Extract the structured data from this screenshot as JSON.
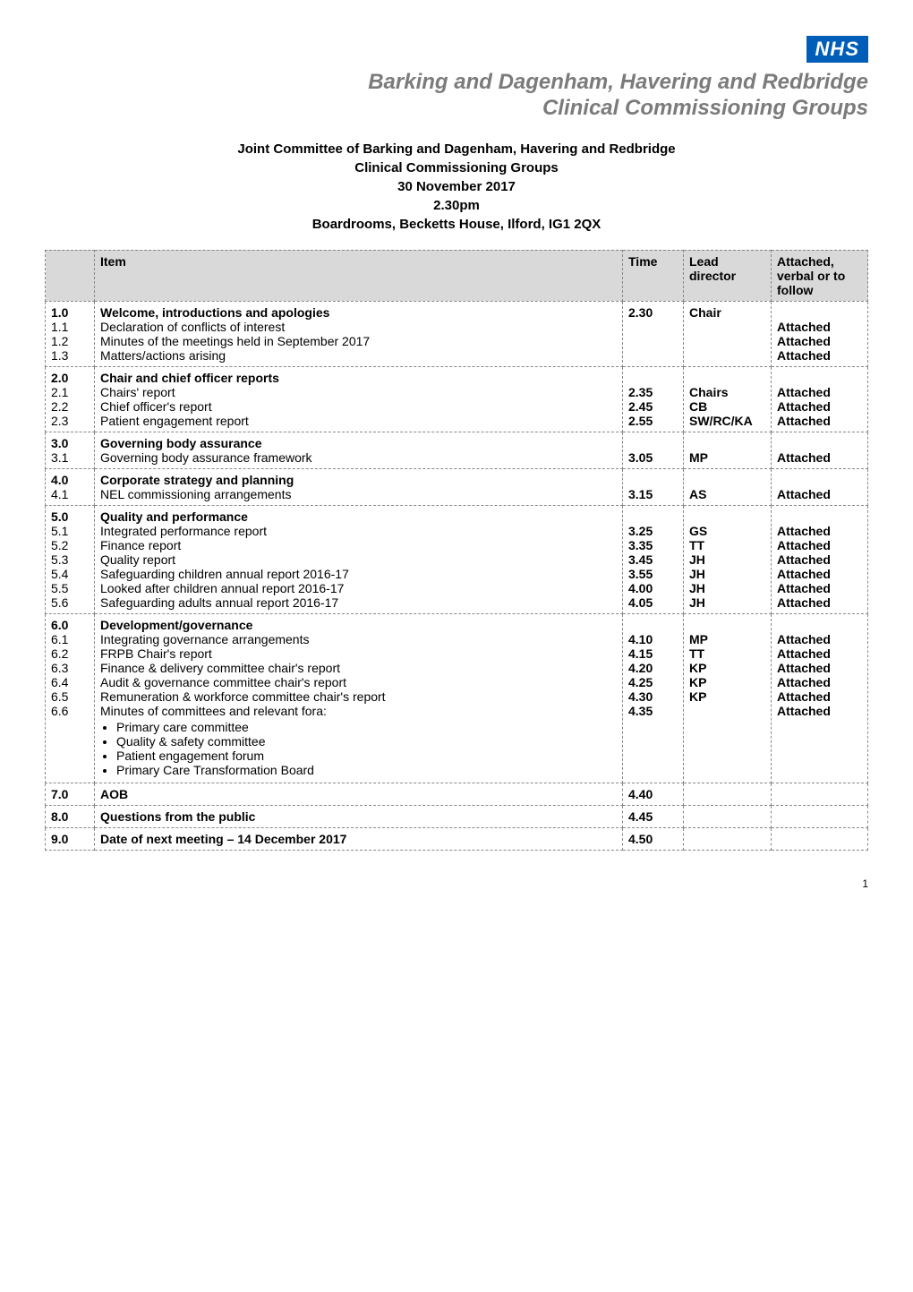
{
  "logo": {
    "text": "NHS",
    "bg_color": "#005eb8",
    "text_color": "#ffffff"
  },
  "org_name_line1": "Barking and Dagenham, Havering and Redbridge",
  "org_name_line2": "Clinical Commissioning Groups",
  "org_name_color": "#7b7b7b",
  "title_lines": [
    "Joint Committee of Barking and Dagenham, Havering and Redbridge",
    "Clinical Commissioning Groups",
    "30 November 2017",
    "2.30pm",
    "Boardrooms, Becketts House, Ilford, IG1 2QX"
  ],
  "headers": {
    "item": "Item",
    "time": "Time",
    "lead": "Lead director",
    "attached": "Attached, verbal or to follow"
  },
  "header_bg": "#d9d9d9",
  "border_color": "#888888",
  "sections": [
    {
      "num": "1.0",
      "title": "Welcome, introductions and apologies",
      "time": "2.30",
      "lead": "Chair",
      "attached": "",
      "rows": [
        {
          "num": "1.1",
          "item": "Declaration of conflicts of interest",
          "time": "",
          "lead": "",
          "attached": "Attached"
        },
        {
          "num": "1.2",
          "item": "Minutes of the meetings held in September 2017",
          "time": "",
          "lead": "",
          "attached": "Attached"
        },
        {
          "num": "1.3",
          "item": "Matters/actions arising",
          "time": "",
          "lead": "",
          "attached": "Attached"
        }
      ]
    },
    {
      "num": "2.0",
      "title": "Chair and chief officer reports",
      "time": "",
      "lead": "",
      "attached": "",
      "rows": [
        {
          "num": "2.1",
          "item": "Chairs' report",
          "time": "2.35",
          "lead": "Chairs",
          "attached": "Attached"
        },
        {
          "num": "2.2",
          "item": "Chief officer's report",
          "time": "2.45",
          "lead": "CB",
          "attached": "Attached"
        },
        {
          "num": "2.3",
          "item": "Patient engagement report",
          "time": "2.55",
          "lead": "SW/RC/KA",
          "attached": "Attached"
        }
      ]
    },
    {
      "num": "3.0",
      "title": "Governing body assurance",
      "time": "",
      "lead": "",
      "attached": "",
      "rows": [
        {
          "num": "3.1",
          "item": "Governing body assurance framework",
          "time": "3.05",
          "lead": "MP",
          "attached": "Attached"
        }
      ]
    },
    {
      "num": "4.0",
      "title": "Corporate strategy and planning",
      "time": "",
      "lead": "",
      "attached": "",
      "rows": [
        {
          "num": "4.1",
          "item": "NEL commissioning arrangements",
          "time": "3.15",
          "lead": "AS",
          "attached": "Attached"
        }
      ]
    },
    {
      "num": "5.0",
      "title": "Quality and performance",
      "time": "",
      "lead": "",
      "attached": "",
      "rows": [
        {
          "num": "5.1",
          "item": "Integrated performance report",
          "time": "3.25",
          "lead": "GS",
          "attached": "Attached"
        },
        {
          "num": "5.2",
          "item": "Finance report",
          "time": "3.35",
          "lead": "TT",
          "attached": "Attached"
        },
        {
          "num": "5.3",
          "item": "Quality report",
          "time": "3.45",
          "lead": "JH",
          "attached": "Attached"
        },
        {
          "num": "5.4",
          "item": "Safeguarding children annual report 2016-17",
          "time": "3.55",
          "lead": "JH",
          "attached": "Attached"
        },
        {
          "num": "5.5",
          "item": "Looked after children annual report 2016-17",
          "time": "4.00",
          "lead": "JH",
          "attached": "Attached"
        },
        {
          "num": "5.6",
          "item": "Safeguarding adults annual report 2016-17",
          "time": "4.05",
          "lead": "JH",
          "attached": "Attached"
        }
      ]
    },
    {
      "num": "6.0",
      "title": "Development/governance",
      "time": "",
      "lead": "",
      "attached": "",
      "rows": [
        {
          "num": "6.1",
          "item": "Integrating governance arrangements",
          "time": "4.10",
          "lead": "MP",
          "attached": "Attached"
        },
        {
          "num": "6.2",
          "item": "FRPB Chair's report",
          "time": "4.15",
          "lead": "TT",
          "attached": "Attached"
        },
        {
          "num": "6.3",
          "item": "Finance & delivery committee chair's report",
          "time": "4.20",
          "lead": "KP",
          "attached": "Attached"
        },
        {
          "num": "6.4",
          "item": "Audit & governance committee chair's report",
          "time": "4.25",
          "lead": "KP",
          "attached": "Attached"
        },
        {
          "num": "6.5",
          "item": "Remuneration & workforce committee chair's report",
          "time": "4.30",
          "lead": "KP",
          "attached": "Attached"
        },
        {
          "num": "6.6",
          "item": "Minutes of committees and relevant fora:",
          "time": "4.35",
          "lead": "",
          "attached": "Attached",
          "bullets": [
            "Primary care committee",
            "Quality & safety committee",
            "Patient engagement forum",
            "Primary Care Transformation Board"
          ]
        }
      ]
    }
  ],
  "final_rows": [
    {
      "num": "7.0",
      "item": "AOB",
      "time": "4.40",
      "lead": "",
      "attached": ""
    },
    {
      "num": "8.0",
      "item": "Questions from the public",
      "time": "4.45",
      "lead": "",
      "attached": ""
    },
    {
      "num": "9.0",
      "item": "Date of next meeting – 14 December 2017",
      "time": "4.50",
      "lead": "",
      "attached": ""
    }
  ],
  "page_number": "1"
}
